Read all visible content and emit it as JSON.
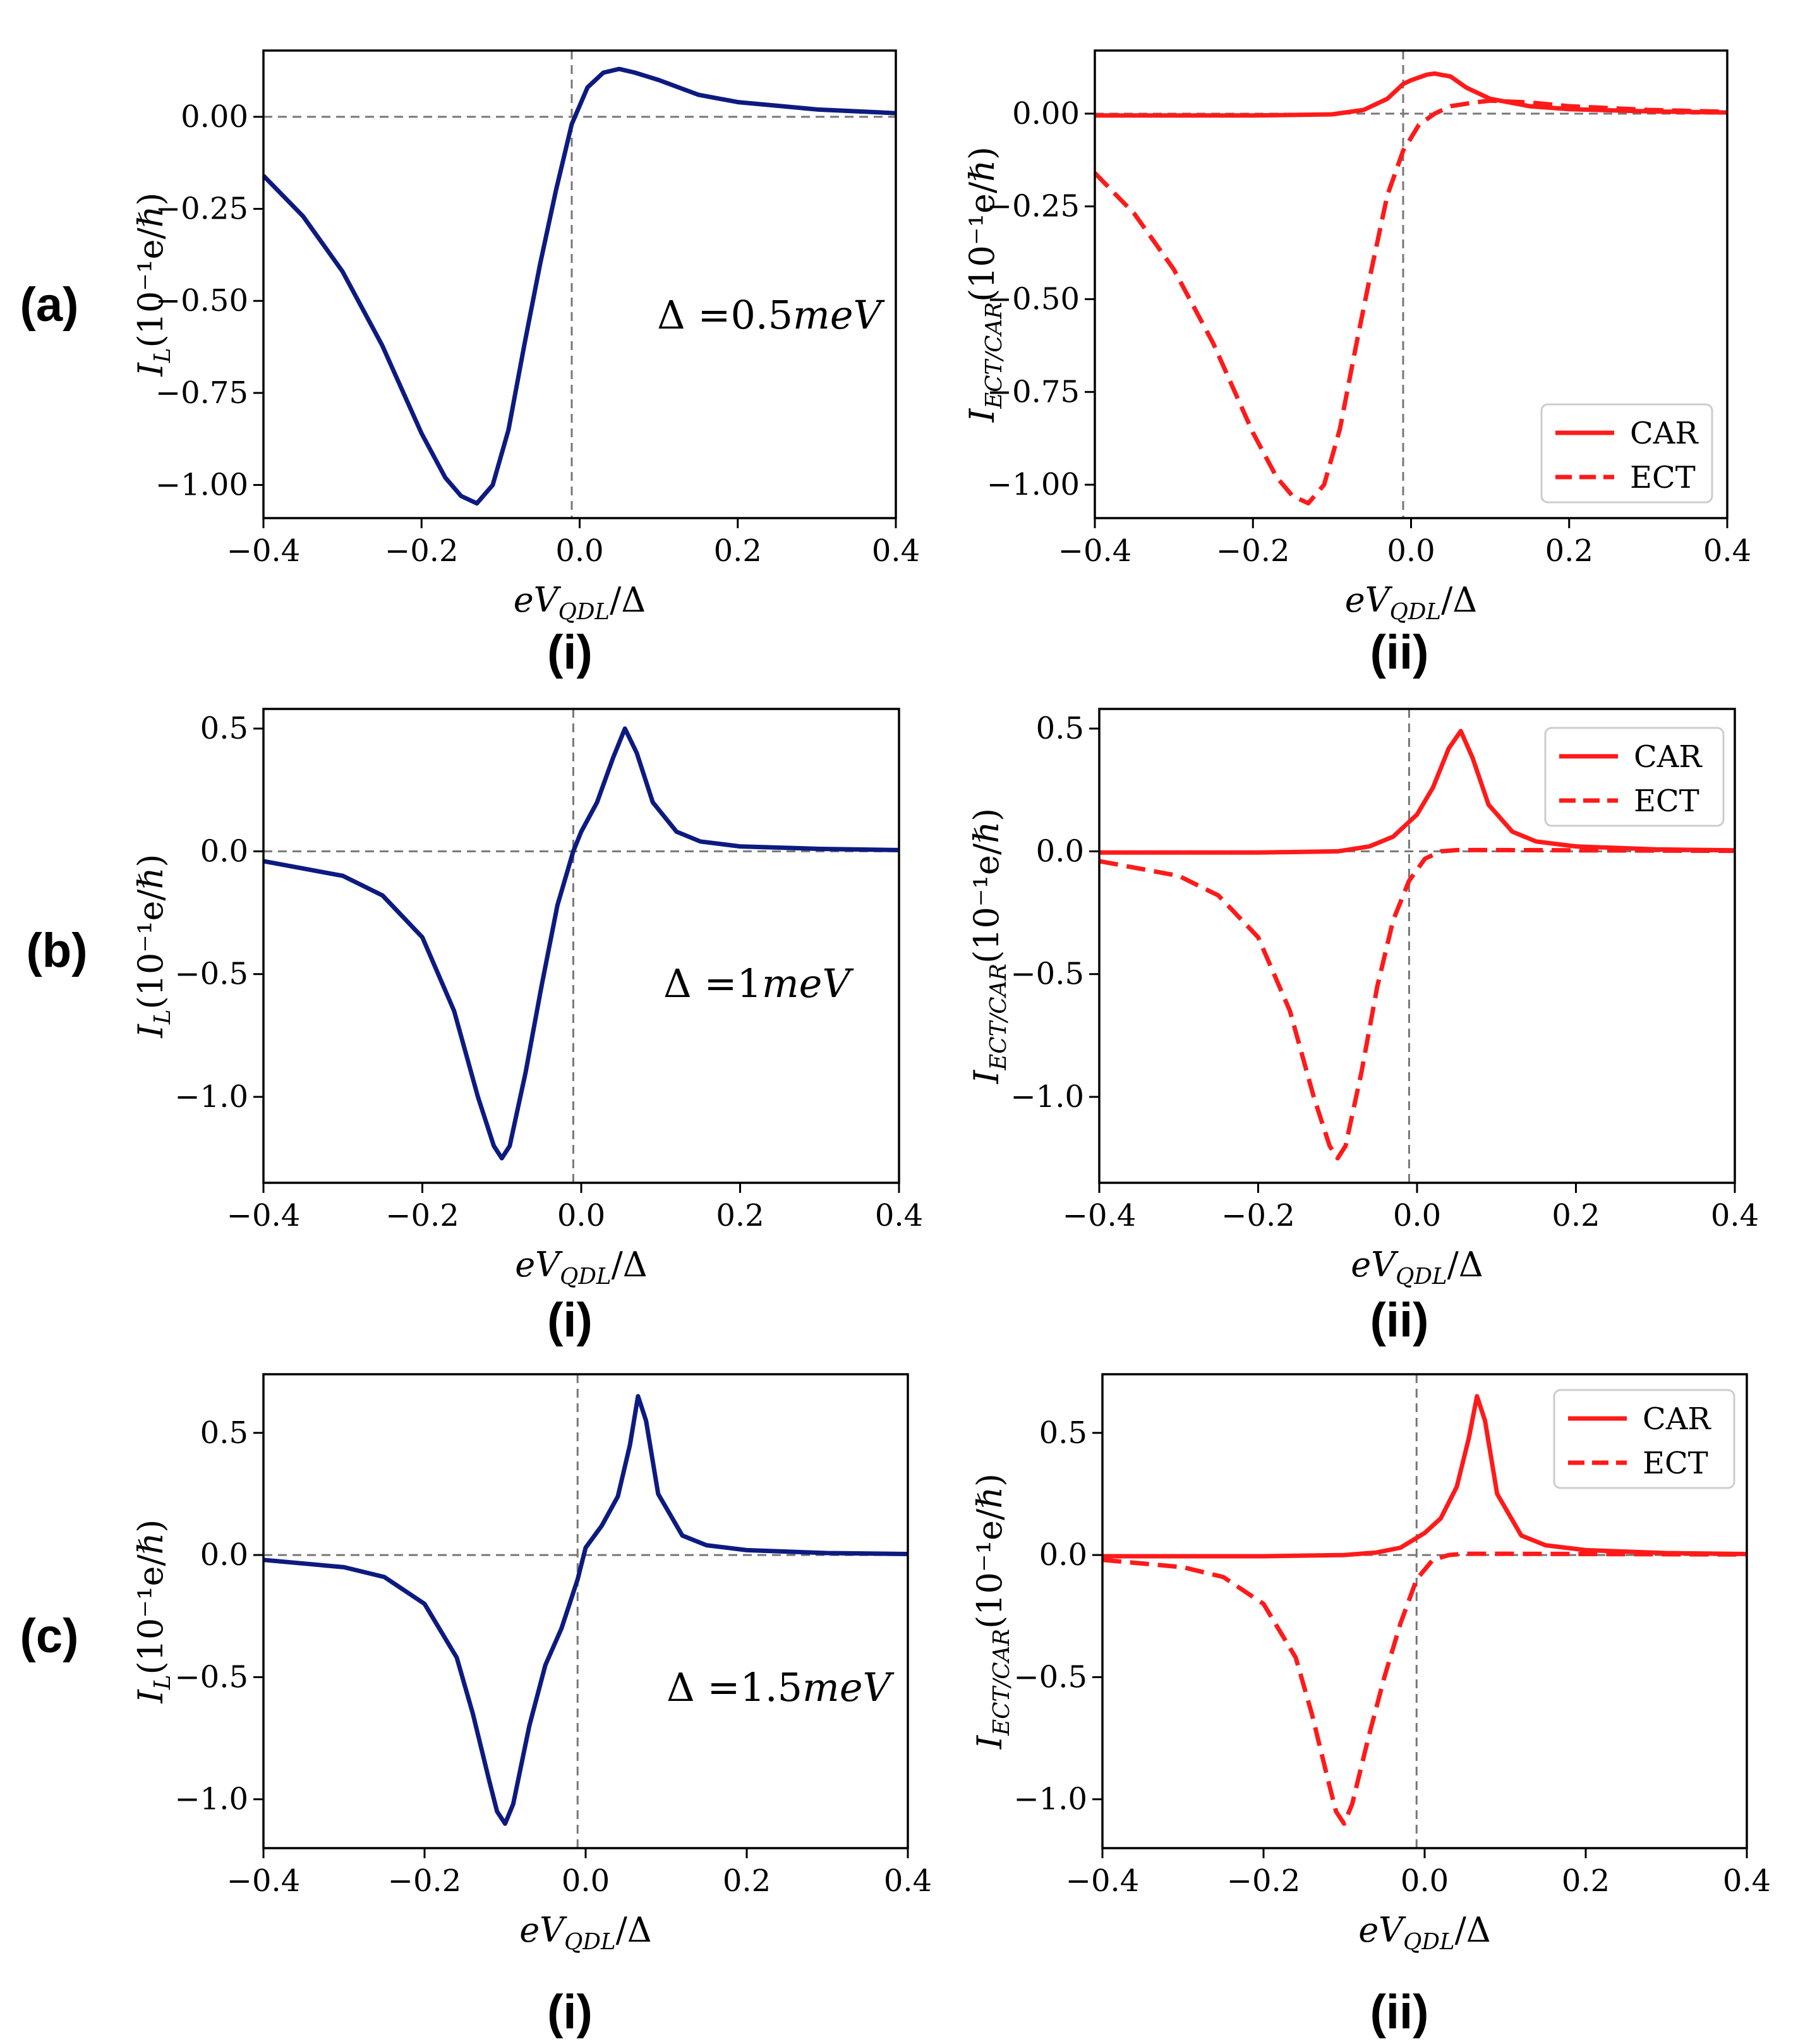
{
  "figure": {
    "row_labels": [
      "(a)",
      "(b)",
      "(c)"
    ],
    "col_labels": [
      "(i)",
      "(ii)"
    ]
  },
  "colors": {
    "IL": "#0d1a80",
    "CAR": "#ff1a1a",
    "ECT": "#ff1a1a",
    "axis": "#000000",
    "refline": "#777777"
  },
  "axis_text": {
    "xlabel_main": "eV",
    "xlabel_sub": "QDL",
    "xlabel_tail": "/Δ",
    "ylabel_IL_main": "I",
    "ylabel_IL_sub": "L",
    "ylabel_IL_tail": "(10⁻¹e/ℏ)",
    "ylabel_ECT_main": "I",
    "ylabel_ECT_sub": "ECT/CAR",
    "ylabel_ECT_tail": "(10⁻¹e/ℏ)"
  },
  "chart_data": [
    {
      "panel": "a-i",
      "type": "line",
      "xlabel": "eV_QDL/Δ",
      "ylabel": "I_L(10⁻¹e/ℏ)",
      "xlim": [
        -0.4,
        0.4
      ],
      "ylim": [
        -1.09,
        0.18
      ],
      "xticks": [
        -0.4,
        -0.2,
        0.0,
        0.2,
        0.4
      ],
      "xtick_labels": [
        "−0.4",
        "−0.2",
        "0.0",
        "0.2",
        "0.4"
      ],
      "yticks": [
        0.0,
        -0.25,
        -0.5,
        -0.75,
        -1.0
      ],
      "ytick_labels": [
        "0.00",
        "−0.25",
        "−0.50",
        "−0.75",
        "−1.00"
      ],
      "annotation": "Δ =0.5meV",
      "legend": [],
      "series": [
        {
          "name": "I_L",
          "style": "solid",
          "color_key": "IL",
          "x": [
            -0.4,
            -0.35,
            -0.3,
            -0.25,
            -0.2,
            -0.17,
            -0.15,
            -0.13,
            -0.11,
            -0.09,
            -0.07,
            -0.05,
            -0.03,
            -0.01,
            0.01,
            0.03,
            0.05,
            0.07,
            0.1,
            0.15,
            0.2,
            0.3,
            0.4
          ],
          "y": [
            -0.16,
            -0.27,
            -0.42,
            -0.62,
            -0.86,
            -0.98,
            -1.03,
            -1.05,
            -1.0,
            -0.85,
            -0.62,
            -0.4,
            -0.2,
            -0.02,
            0.08,
            0.12,
            0.13,
            0.12,
            0.1,
            0.06,
            0.04,
            0.02,
            0.01
          ]
        }
      ]
    },
    {
      "panel": "a-ii",
      "type": "line",
      "xlabel": "eV_QDL/Δ",
      "ylabel": "I_ECT/CAR(10⁻¹e/ℏ)",
      "xlim": [
        -0.4,
        0.4
      ],
      "ylim": [
        -1.09,
        0.17
      ],
      "xticks": [
        -0.4,
        -0.2,
        0.0,
        0.2,
        0.4
      ],
      "xtick_labels": [
        "−0.4",
        "−0.2",
        "0.0",
        "0.2",
        "0.4"
      ],
      "yticks": [
        0.0,
        -0.25,
        -0.5,
        -0.75,
        -1.0
      ],
      "ytick_labels": [
        "0.00",
        "−0.25",
        "−0.50",
        "−0.75",
        "−1.00"
      ],
      "annotation": "",
      "legend": [
        "CAR",
        "ECT"
      ],
      "legend_loc": "lower-right",
      "series": [
        {
          "name": "CAR",
          "style": "solid",
          "color_key": "CAR",
          "x": [
            -0.4,
            -0.2,
            -0.1,
            -0.06,
            -0.03,
            -0.01,
            0.0,
            0.02,
            0.03,
            0.05,
            0.07,
            0.1,
            0.15,
            0.2,
            0.3,
            0.4
          ],
          "y": [
            -0.005,
            -0.005,
            -0.002,
            0.01,
            0.04,
            0.08,
            0.09,
            0.105,
            0.108,
            0.1,
            0.07,
            0.04,
            0.02,
            0.012,
            0.006,
            0.003
          ]
        },
        {
          "name": "ECT",
          "style": "dashed",
          "color_key": "ECT",
          "x": [
            -0.4,
            -0.35,
            -0.3,
            -0.25,
            -0.2,
            -0.17,
            -0.15,
            -0.13,
            -0.11,
            -0.09,
            -0.07,
            -0.05,
            -0.03,
            -0.01,
            0.01,
            0.03,
            0.05,
            0.08,
            0.1,
            0.15,
            0.2,
            0.3,
            0.4
          ],
          "y": [
            -0.16,
            -0.27,
            -0.42,
            -0.62,
            -0.86,
            -0.98,
            -1.03,
            -1.05,
            -1.0,
            -0.85,
            -0.63,
            -0.42,
            -0.22,
            -0.1,
            -0.03,
            0.0,
            0.02,
            0.03,
            0.035,
            0.03,
            0.02,
            0.01,
            0.005
          ]
        }
      ]
    },
    {
      "panel": "b-i",
      "type": "line",
      "xlabel": "eV_QDL/Δ",
      "ylabel": "I_L(10⁻¹e/ℏ)",
      "xlim": [
        -0.4,
        0.4
      ],
      "ylim": [
        -1.35,
        0.58
      ],
      "xticks": [
        -0.4,
        -0.2,
        0.0,
        0.2,
        0.4
      ],
      "xtick_labels": [
        "−0.4",
        "−0.2",
        "0.0",
        "0.2",
        "0.4"
      ],
      "yticks": [
        0.5,
        0.0,
        -0.5,
        -1.0
      ],
      "ytick_labels": [
        "0.5",
        "0.0",
        "−0.5",
        "−1.0"
      ],
      "annotation": "Δ =1meV",
      "legend": [],
      "series": [
        {
          "name": "I_L",
          "style": "solid",
          "color_key": "IL",
          "x": [
            -0.4,
            -0.3,
            -0.25,
            -0.2,
            -0.16,
            -0.13,
            -0.11,
            -0.1,
            -0.09,
            -0.07,
            -0.05,
            -0.03,
            -0.01,
            0.0,
            0.02,
            0.04,
            0.055,
            0.07,
            0.09,
            0.12,
            0.15,
            0.2,
            0.3,
            0.4
          ],
          "y": [
            -0.04,
            -0.1,
            -0.18,
            -0.35,
            -0.65,
            -1.0,
            -1.2,
            -1.25,
            -1.2,
            -0.9,
            -0.55,
            -0.22,
            0.0,
            0.08,
            0.2,
            0.38,
            0.5,
            0.4,
            0.2,
            0.08,
            0.04,
            0.02,
            0.01,
            0.005
          ]
        }
      ]
    },
    {
      "panel": "b-ii",
      "type": "line",
      "xlabel": "eV_QDL/Δ",
      "ylabel": "I_ECT/CAR(10⁻¹e/ℏ)",
      "xlim": [
        -0.4,
        0.4
      ],
      "ylim": [
        -1.35,
        0.58
      ],
      "xticks": [
        -0.4,
        -0.2,
        0.0,
        0.2,
        0.4
      ],
      "xtick_labels": [
        "−0.4",
        "−0.2",
        "0.0",
        "0.2",
        "0.4"
      ],
      "yticks": [
        0.5,
        0.0,
        -0.5,
        -1.0
      ],
      "ytick_labels": [
        "0.5",
        "0.0",
        "−0.5",
        "−1.0"
      ],
      "annotation": "",
      "legend": [
        "CAR",
        "ECT"
      ],
      "legend_loc": "upper-right",
      "series": [
        {
          "name": "CAR",
          "style": "solid",
          "color_key": "CAR",
          "x": [
            -0.4,
            -0.2,
            -0.1,
            -0.06,
            -0.03,
            -0.01,
            0.0,
            0.02,
            0.04,
            0.055,
            0.07,
            0.09,
            0.12,
            0.15,
            0.2,
            0.3,
            0.4
          ],
          "y": [
            -0.005,
            -0.005,
            0.0,
            0.02,
            0.06,
            0.12,
            0.15,
            0.26,
            0.42,
            0.49,
            0.38,
            0.19,
            0.08,
            0.04,
            0.02,
            0.008,
            0.004
          ]
        },
        {
          "name": "ECT",
          "style": "dashed",
          "color_key": "ECT",
          "x": [
            -0.4,
            -0.3,
            -0.25,
            -0.2,
            -0.16,
            -0.13,
            -0.11,
            -0.1,
            -0.09,
            -0.07,
            -0.05,
            -0.03,
            -0.01,
            0.01,
            0.03,
            0.05,
            0.1,
            0.2,
            0.3,
            0.4
          ],
          "y": [
            -0.04,
            -0.1,
            -0.18,
            -0.35,
            -0.65,
            -1.0,
            -1.2,
            -1.25,
            -1.2,
            -0.9,
            -0.55,
            -0.28,
            -0.12,
            -0.03,
            0.0,
            0.005,
            0.005,
            0.004,
            0.003,
            0.002
          ]
        }
      ]
    },
    {
      "panel": "c-i",
      "type": "line",
      "xlabel": "eV_QDL/Δ",
      "ylabel": "I_L(10⁻¹e/ℏ)",
      "xlim": [
        -0.4,
        0.4
      ],
      "ylim": [
        -1.2,
        0.74
      ],
      "xticks": [
        -0.4,
        -0.2,
        0.0,
        0.2,
        0.4
      ],
      "xtick_labels": [
        "−0.4",
        "−0.2",
        "0.0",
        "0.2",
        "0.4"
      ],
      "yticks": [
        0.5,
        0.0,
        -0.5,
        -1.0
      ],
      "ytick_labels": [
        "0.5",
        "0.0",
        "−0.5",
        "−1.0"
      ],
      "annotation": "Δ =1.5meV",
      "legend": [],
      "series": [
        {
          "name": "I_L",
          "style": "solid",
          "color_key": "IL",
          "x": [
            -0.4,
            -0.3,
            -0.25,
            -0.2,
            -0.16,
            -0.14,
            -0.12,
            -0.11,
            -0.1,
            -0.09,
            -0.07,
            -0.05,
            -0.03,
            -0.01,
            0.0,
            0.02,
            0.04,
            0.055,
            0.065,
            0.075,
            0.09,
            0.12,
            0.15,
            0.2,
            0.3,
            0.4
          ],
          "y": [
            -0.02,
            -0.05,
            -0.09,
            -0.2,
            -0.42,
            -0.65,
            -0.92,
            -1.05,
            -1.1,
            -1.02,
            -0.7,
            -0.45,
            -0.3,
            -0.1,
            0.03,
            0.12,
            0.24,
            0.45,
            0.65,
            0.55,
            0.25,
            0.08,
            0.04,
            0.02,
            0.008,
            0.004
          ]
        }
      ]
    },
    {
      "panel": "c-ii",
      "type": "line",
      "xlabel": "eV_QDL/Δ",
      "ylabel": "I_ECT/CAR(10⁻¹e/ℏ)",
      "xlim": [
        -0.4,
        0.4
      ],
      "ylim": [
        -1.2,
        0.74
      ],
      "xticks": [
        -0.4,
        -0.2,
        0.0,
        0.2,
        0.4
      ],
      "xtick_labels": [
        "−0.4",
        "−0.2",
        "0.0",
        "0.2",
        "0.4"
      ],
      "yticks": [
        0.5,
        0.0,
        -0.5,
        -1.0
      ],
      "ytick_labels": [
        "0.5",
        "0.0",
        "−0.5",
        "−1.0"
      ],
      "annotation": "",
      "legend": [
        "CAR",
        "ECT"
      ],
      "legend_loc": "upper-right",
      "series": [
        {
          "name": "CAR",
          "style": "solid",
          "color_key": "CAR",
          "x": [
            -0.4,
            -0.2,
            -0.1,
            -0.06,
            -0.03,
            -0.01,
            0.0,
            0.02,
            0.04,
            0.055,
            0.065,
            0.075,
            0.09,
            0.12,
            0.15,
            0.2,
            0.3,
            0.4
          ],
          "y": [
            -0.005,
            -0.005,
            0.0,
            0.01,
            0.03,
            0.07,
            0.09,
            0.15,
            0.28,
            0.48,
            0.65,
            0.55,
            0.25,
            0.08,
            0.04,
            0.02,
            0.008,
            0.004
          ]
        },
        {
          "name": "ECT",
          "style": "dashed",
          "color_key": "ECT",
          "x": [
            -0.4,
            -0.3,
            -0.25,
            -0.2,
            -0.16,
            -0.14,
            -0.12,
            -0.11,
            -0.1,
            -0.09,
            -0.07,
            -0.05,
            -0.03,
            -0.01,
            0.01,
            0.03,
            0.05,
            0.1,
            0.2,
            0.3,
            0.4
          ],
          "y": [
            -0.02,
            -0.05,
            -0.09,
            -0.2,
            -0.42,
            -0.65,
            -0.92,
            -1.05,
            -1.1,
            -1.02,
            -0.75,
            -0.5,
            -0.28,
            -0.1,
            -0.02,
            0.0,
            0.005,
            0.005,
            0.004,
            0.003,
            0.002
          ]
        }
      ]
    }
  ]
}
